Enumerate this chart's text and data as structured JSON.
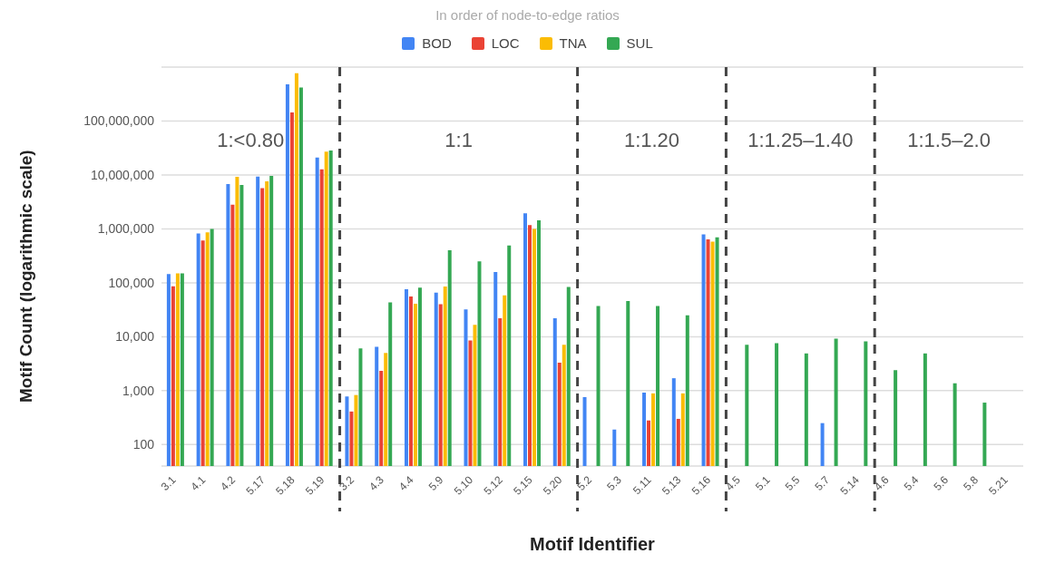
{
  "chart_data": {
    "type": "bar",
    "title": "In order of node-to-edge ratios",
    "xlabel": "Motif Identifier",
    "ylabel": "Motif Count (logarithmic scale)",
    "categories": [
      "3.1",
      "4.1",
      "4.2",
      "5.17",
      "5.18",
      "5.19",
      "3.2",
      "4.3",
      "4.4",
      "5.9",
      "5.10",
      "5.12",
      "5.15",
      "5.20",
      "5.2",
      "5.3",
      "5.11",
      "5.13",
      "5.16",
      "4.5",
      "5.1",
      "5.5",
      "5.7",
      "5.14",
      "4.6",
      "5.4",
      "5.6",
      "5.8",
      "5.21"
    ],
    "series": [
      {
        "name": "BOD",
        "color": "#4285f4",
        "values": [
          145000,
          820000,
          6800000,
          9300000,
          480000000,
          21000000,
          780,
          6500,
          76000,
          66000,
          32000,
          158000,
          1950000,
          22000,
          760,
          190,
          920,
          1700,
          790000,
          null,
          null,
          null,
          250,
          null,
          null,
          null,
          null,
          null,
          null
        ]
      },
      {
        "name": "LOC",
        "color": "#ea4335",
        "values": [
          86000,
          610000,
          2800000,
          5700000,
          144000000,
          12700000,
          410,
          2330,
          56000,
          40000,
          8500,
          22000,
          1180000,
          3300,
          null,
          null,
          280,
          300,
          640000,
          null,
          null,
          null,
          null,
          null,
          null,
          null,
          null,
          null,
          null
        ]
      },
      {
        "name": "TNA",
        "color": "#fbbc04",
        "values": [
          150000,
          860000,
          9200000,
          7600000,
          770000000,
          27000000,
          830,
          5000,
          41000,
          85000,
          16700,
          58600,
          1000000,
          7100,
          null,
          null,
          890,
          890,
          580000,
          null,
          null,
          null,
          null,
          null,
          null,
          null,
          null,
          null,
          null
        ]
      },
      {
        "name": "SUL",
        "color": "#34a853",
        "values": [
          150000,
          1000000,
          6500000,
          9600000,
          420000000,
          28500000,
          6100,
          43500,
          81000,
          400000,
          250000,
          492000,
          1440000,
          84000,
          37000,
          46000,
          37000,
          25000,
          700000,
          7100,
          7600,
          4900,
          9250,
          8200,
          2400,
          4900,
          1370,
          600,
          null
        ]
      }
    ],
    "log": "y",
    "ylim": [
      40,
      1000000000
    ],
    "yticks": [
      {
        "value": 100,
        "label": "100"
      },
      {
        "value": 1000,
        "label": "1,000"
      },
      {
        "value": 10000,
        "label": "10,000"
      },
      {
        "value": 100000,
        "label": "100,000"
      },
      {
        "value": 1000000,
        "label": "1,000,000"
      },
      {
        "value": 10000000,
        "label": "10,000,000"
      },
      {
        "value": 100000000,
        "label": "100,000,000"
      }
    ],
    "grid": "y",
    "legend": "top",
    "annotations": [
      "1:<0.80",
      "1:1",
      "1:1.20",
      "1:1.25–1.40",
      "1:1.5–2.0"
    ],
    "ref_lines": [
      {
        "axis": "x",
        "value": "3.2",
        "color": "#444444",
        "line_style": "dashed"
      },
      {
        "axis": "x",
        "value": "5.2",
        "color": "#444444",
        "line_style": "dashed"
      },
      {
        "axis": "x",
        "value": "4.5",
        "color": "#444444",
        "line_style": "dashed"
      },
      {
        "axis": "x",
        "value": "4.6",
        "color": "#444444",
        "line_style": "dashed"
      }
    ]
  }
}
